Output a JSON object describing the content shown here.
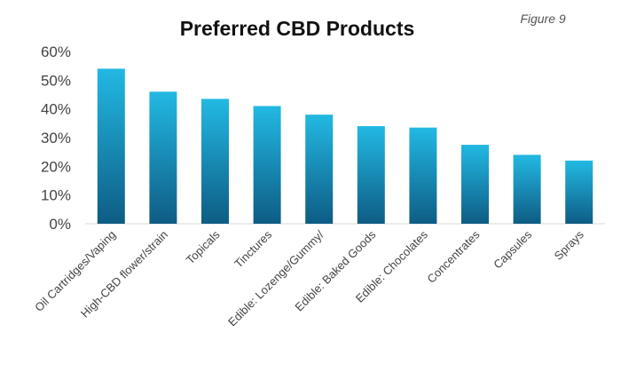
{
  "figure_label": "Figure 9",
  "chart_data": {
    "type": "bar",
    "title": "Preferred CBD Products",
    "xlabel": "",
    "ylabel": "",
    "categories": [
      "Oil Cartridges/Vaping",
      "High-CBD flower/strain",
      "Topicals",
      "Tinctures",
      "Edible: Lozenge/Gummy/",
      "Edible: Baked Goods",
      "Edible: Chocolates",
      "Concentrates",
      "Capsules",
      "Sprays"
    ],
    "values": [
      54,
      46,
      43.5,
      41,
      38,
      34,
      33.5,
      27.5,
      24,
      22
    ],
    "ylim": [
      0,
      60
    ],
    "yticks": [
      "0%",
      "10%",
      "20%",
      "30%",
      "40%",
      "50%",
      "60%"
    ],
    "grid": false,
    "colors": {
      "bar_top": "#22b9e3",
      "bar_bottom": "#0e5c84"
    }
  }
}
